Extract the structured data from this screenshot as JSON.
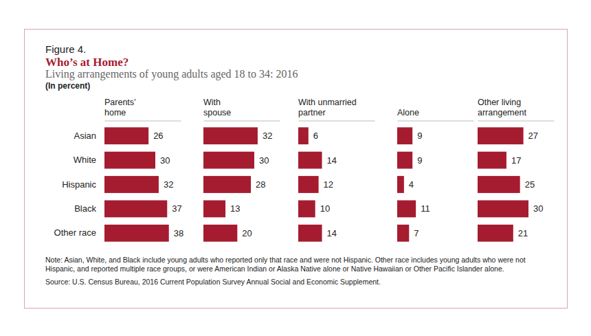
{
  "figure_label": "Figure 4.",
  "title": "Who’s at Home?",
  "subtitle": "Living arrangements of young adults aged 18 to 34: 2016",
  "units": "(In percent)",
  "note": "Note: Asian, White, and Black include young adults who reported only that race and were not Hispanic. Other race includes young adults who were not Hispanic, and reported multiple race groups, or were American Indian or Alaska Native alone or Native Hawaiian or Other Pacific Islander alone.",
  "source": "Source: U.S. Census Bureau, 2016 Current Population Survey Annual Social and Economic Supplement.",
  "chart_data": [
    {
      "type": "bar",
      "orientation": "horizontal",
      "title": "Parents’\nhome",
      "categories": [
        "Asian",
        "White",
        "Hispanic",
        "Black",
        "Other race"
      ],
      "values": [
        26,
        30,
        32,
        37,
        38
      ],
      "xlim": [
        0,
        45
      ],
      "color": "#a51c30",
      "data_labels": true,
      "tick_labels": "y"
    },
    {
      "type": "bar",
      "orientation": "horizontal",
      "title": "With\nspouse",
      "categories": [
        "Asian",
        "White",
        "Hispanic",
        "Black",
        "Other race"
      ],
      "values": [
        32,
        30,
        28,
        13,
        20
      ],
      "xlim": [
        0,
        45
      ],
      "color": "#a51c30",
      "data_labels": true,
      "tick_labels": false
    },
    {
      "type": "bar",
      "orientation": "horizontal",
      "title": "With unmarried\npartner",
      "categories": [
        "Asian",
        "White",
        "Hispanic",
        "Black",
        "Other race"
      ],
      "values": [
        6,
        14,
        12,
        10,
        14
      ],
      "xlim": [
        0,
        45
      ],
      "color": "#a51c30",
      "data_labels": true,
      "tick_labels": false
    },
    {
      "type": "bar",
      "orientation": "horizontal",
      "title": "Alone",
      "categories": [
        "Asian",
        "White",
        "Hispanic",
        "Black",
        "Other race"
      ],
      "values": [
        9,
        9,
        4,
        11,
        7
      ],
      "xlim": [
        0,
        45
      ],
      "color": "#a51c30",
      "data_labels": true,
      "tick_labels": false
    },
    {
      "type": "bar",
      "orientation": "horizontal",
      "title": "Other living\narrangement",
      "categories": [
        "Asian",
        "White",
        "Hispanic",
        "Black",
        "Other race"
      ],
      "values": [
        27,
        17,
        25,
        30,
        21
      ],
      "xlim": [
        0,
        45
      ],
      "color": "#a51c30",
      "data_labels": true,
      "tick_labels": false
    }
  ]
}
